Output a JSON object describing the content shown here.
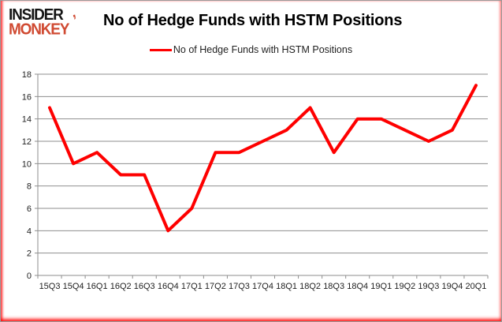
{
  "brand": {
    "name": "Insider Monkey",
    "line1": "INSIDER",
    "line2": "MONKEY",
    "tail_glyph": ","
  },
  "title": "No of Hedge Funds with HSTM Positions",
  "legend": {
    "label": "No of Hedge Funds with HSTM Positions"
  },
  "chart_data": {
    "type": "line",
    "title": "No of Hedge Funds with HSTM Positions",
    "categories": [
      "15Q3",
      "15Q4",
      "16Q1",
      "16Q2",
      "16Q3",
      "16Q4",
      "17Q1",
      "17Q2",
      "17Q3",
      "17Q4",
      "18Q1",
      "18Q2",
      "18Q3",
      "18Q4",
      "19Q1",
      "19Q2",
      "19Q3",
      "19Q4",
      "20Q1"
    ],
    "series": [
      {
        "name": "No of Hedge Funds with HSTM Positions",
        "values": [
          15,
          10,
          11,
          9,
          9,
          4,
          6,
          11,
          11,
          12,
          13,
          15,
          11,
          14,
          14,
          13,
          12,
          13,
          17
        ],
        "color": "#fe0000"
      }
    ],
    "xlabel": "",
    "ylabel": "",
    "ylim": [
      0,
      18
    ],
    "ytick_step": 2,
    "grid": true,
    "legend_position": "top-center"
  },
  "colors": {
    "line": "#fe0000",
    "grid": "#8e8e8e",
    "axis": "#8e8e8e",
    "axis_text": "#1f1f1f",
    "title_text": "#000000",
    "brand_black": "#141414",
    "brand_red": "#d04a32",
    "frame_border": "#9b9b9b",
    "glow": "#ff0000",
    "background": "#ffffff"
  }
}
